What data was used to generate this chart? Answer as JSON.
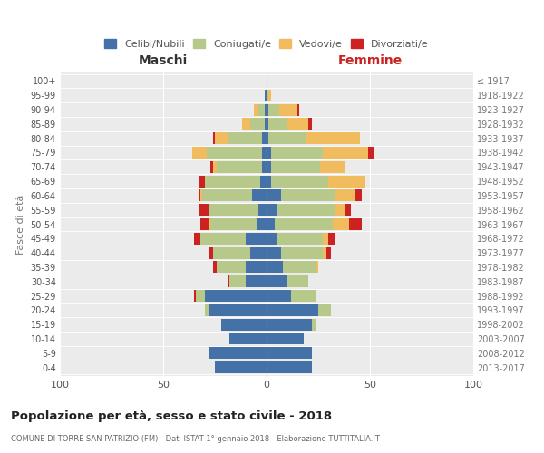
{
  "age_groups": [
    "0-4",
    "5-9",
    "10-14",
    "15-19",
    "20-24",
    "25-29",
    "30-34",
    "35-39",
    "40-44",
    "45-49",
    "50-54",
    "55-59",
    "60-64",
    "65-69",
    "70-74",
    "75-79",
    "80-84",
    "85-89",
    "90-94",
    "95-99",
    "100+"
  ],
  "birth_years": [
    "2013-2017",
    "2008-2012",
    "2003-2007",
    "1998-2002",
    "1993-1997",
    "1988-1992",
    "1983-1987",
    "1978-1982",
    "1973-1977",
    "1968-1972",
    "1963-1967",
    "1958-1962",
    "1953-1957",
    "1948-1952",
    "1943-1947",
    "1938-1942",
    "1933-1937",
    "1928-1932",
    "1923-1927",
    "1918-1922",
    "≤ 1917"
  ],
  "male": {
    "celibi": [
      25,
      28,
      18,
      22,
      28,
      30,
      10,
      10,
      8,
      10,
      5,
      4,
      7,
      3,
      2,
      2,
      2,
      1,
      1,
      1,
      0
    ],
    "coniugati": [
      0,
      0,
      0,
      0,
      2,
      4,
      8,
      14,
      18,
      22,
      22,
      24,
      24,
      27,
      22,
      27,
      17,
      7,
      3,
      0,
      0
    ],
    "vedovi": [
      0,
      0,
      0,
      0,
      0,
      0,
      0,
      0,
      0,
      0,
      1,
      0,
      1,
      0,
      2,
      7,
      6,
      4,
      2,
      0,
      0
    ],
    "divorziati": [
      0,
      0,
      0,
      0,
      0,
      1,
      1,
      2,
      2,
      3,
      4,
      5,
      1,
      3,
      1,
      0,
      1,
      0,
      0,
      0,
      0
    ]
  },
  "female": {
    "nubili": [
      22,
      22,
      18,
      22,
      25,
      12,
      10,
      8,
      7,
      5,
      4,
      5,
      7,
      2,
      2,
      2,
      1,
      1,
      1,
      0,
      0
    ],
    "coniugate": [
      0,
      0,
      0,
      2,
      6,
      12,
      10,
      16,
      20,
      22,
      28,
      28,
      26,
      28,
      24,
      25,
      18,
      9,
      5,
      1,
      0
    ],
    "vedove": [
      0,
      0,
      0,
      0,
      0,
      0,
      0,
      1,
      2,
      3,
      8,
      5,
      10,
      18,
      12,
      22,
      26,
      10,
      9,
      1,
      0
    ],
    "divorziate": [
      0,
      0,
      0,
      0,
      0,
      0,
      0,
      0,
      2,
      3,
      6,
      3,
      3,
      0,
      0,
      3,
      0,
      2,
      1,
      0,
      0
    ]
  },
  "colors": {
    "celibi": "#4472a8",
    "coniugati": "#b6c98a",
    "vedovi": "#f0bc5e",
    "divorziati": "#cc2222"
  },
  "xlim": 100,
  "title": "Popolazione per età, sesso e stato civile - 2018",
  "subtitle": "COMUNE DI TORRE SAN PATRIZIO (FM) - Dati ISTAT 1° gennaio 2018 - Elaborazione TUTTITALIA.IT",
  "xlabel_left": "Maschi",
  "xlabel_right": "Femmine",
  "ylabel_left": "Fasce di età",
  "bg_color": "#ffffff",
  "plot_bg_color": "#ebebeb",
  "grid_color": "#ffffff"
}
